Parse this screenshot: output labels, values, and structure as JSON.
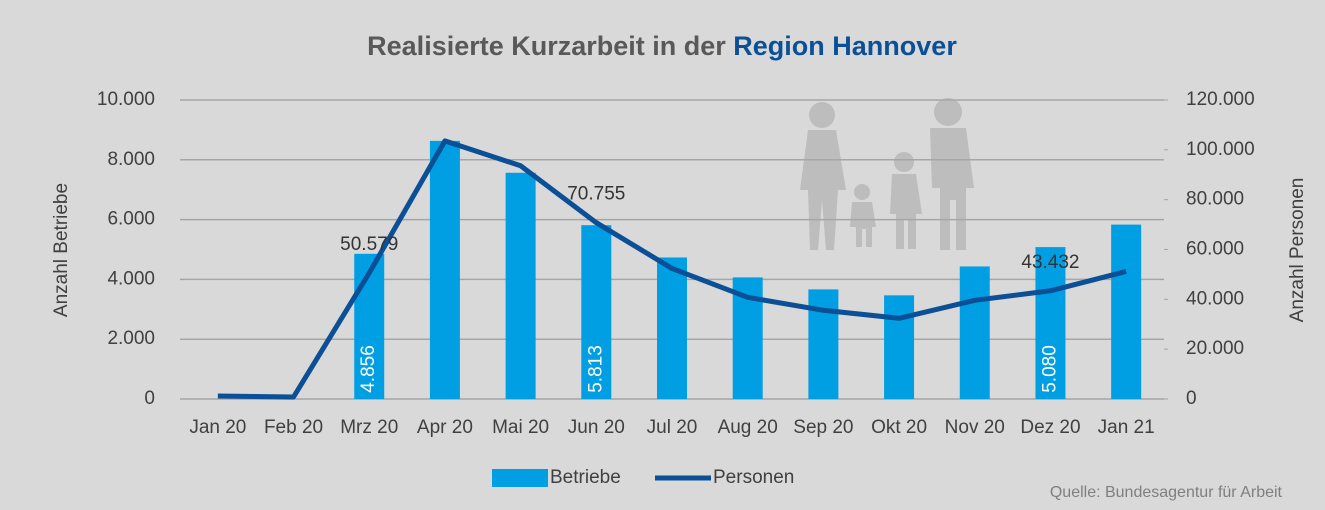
{
  "chart_data": {
    "type": "bar",
    "title": "Realisierte Kurzarbeit in der",
    "title_highlight": "Region Hannover",
    "categories": [
      "Jan 20",
      "Feb 20",
      "Mrz 20",
      "Apr 20",
      "Mai 20",
      "Jun 20",
      "Jul 20",
      "Aug 20",
      "Sep 20",
      "Okt 20",
      "Nov 20",
      "Dez 20",
      "Jan 21"
    ],
    "series": [
      {
        "name": "Betriebe",
        "type": "bar",
        "color": "#009fe3",
        "values": [
          0,
          0,
          4856,
          8633,
          7567,
          5813,
          4733,
          4067,
          3667,
          3467,
          4433,
          5080,
          5833
        ],
        "value_labels": [
          null,
          null,
          "4.856",
          null,
          null,
          "5.813",
          null,
          null,
          null,
          null,
          null,
          "5.080",
          null
        ]
      },
      {
        "name": "Personen",
        "type": "line",
        "axis": "y2",
        "color": "#0b4f96",
        "values": [
          1200,
          800,
          50579,
          103600,
          93600,
          70755,
          52400,
          40800,
          35600,
          32400,
          39600,
          43432,
          51200
        ],
        "value_labels": [
          null,
          null,
          "50.579",
          null,
          null,
          "70.755",
          null,
          null,
          null,
          null,
          null,
          "43.432",
          null
        ]
      }
    ],
    "ylabel": "Anzahl  Betriebe",
    "y2label": "Anzahl Personen",
    "ylim": [
      0,
      10000
    ],
    "yticks": [
      0,
      {
        "value": 2000,
        "label": "2.000"
      },
      {
        "value": 4000,
        "label": "4.000"
      },
      {
        "value": 6000,
        "label": "6.000"
      },
      {
        "value": 8000,
        "label": "8.000"
      },
      {
        "value": 10000,
        "label": "10.000"
      }
    ],
    "y2lim": [
      0,
      120000
    ],
    "y2ticks": [
      0,
      {
        "value": 20000,
        "label": "20.000"
      },
      {
        "value": 40000,
        "label": "40.000"
      },
      {
        "value": 60000,
        "label": "60.000"
      },
      {
        "value": 80000,
        "label": "80.000"
      },
      {
        "value": 100000,
        "label": "100.000"
      },
      {
        "value": 120000,
        "label": "120.000"
      }
    ],
    "grid": true,
    "legend": "bottom",
    "source": "Quelle: Bundesagentur für Arbeit"
  }
}
